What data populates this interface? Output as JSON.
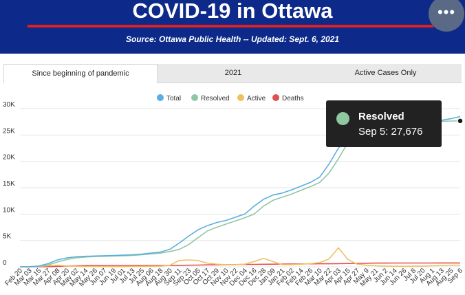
{
  "header": {
    "title": "COVID-19 in Ottawa",
    "subtitle": "Source:  Ottawa Public Health -- Updated:  Sept. 6, 2021",
    "menu_label": "•••"
  },
  "tabs": [
    {
      "label": "Since beginning of pandemic",
      "active": true
    },
    {
      "label": "2021",
      "active": false
    },
    {
      "label": "Active Cases Only",
      "active": false
    }
  ],
  "tooltip": {
    "series": "Resolved",
    "text": "Sep 5: 27,676"
  },
  "chart_data": {
    "type": "line",
    "legend": "top-center",
    "grid": true,
    "ylim": [
      0,
      30000
    ],
    "y_ticks": [
      "0",
      "5K",
      "10K",
      "15K",
      "20K",
      "25K",
      "30K"
    ],
    "x_labels": [
      "Feb 20",
      "Mar 03",
      "Mar 15",
      "Mar 27",
      "Apr 08",
      "Apr 20",
      "May 02",
      "May 14",
      "May 26",
      "Jun 07",
      "Jun 19",
      "Jul 01",
      "Jul 13",
      "Jul 25",
      "Aug 06",
      "Aug 18",
      "Aug 30",
      "Sep 11",
      "Sep 23",
      "Oct 05",
      "Oct 17",
      "Oct 29",
      "Nov 10",
      "Nov 22",
      "Dec 04",
      "Dec 16",
      "Dec 28",
      "Jan 09",
      "Jan 21",
      "Feb 02",
      "Feb 14",
      "Feb 26",
      "Mar 10",
      "Mar 22",
      "Apr 03",
      "Apr 15",
      "Apr 27",
      "May 9",
      "May 21",
      "Jun 2",
      "Jun 14",
      "Jun 26",
      "Jul 8",
      "Jul 20",
      "Aug 1",
      "Aug 13",
      "Aug 25",
      "Sep 6"
    ],
    "series": [
      {
        "name": "Total",
        "color": "#5aaee0",
        "values": [
          0,
          20,
          150,
          600,
          1300,
          1700,
          1900,
          2000,
          2050,
          2100,
          2150,
          2200,
          2300,
          2400,
          2600,
          2800,
          3300,
          4500,
          5800,
          7000,
          7800,
          8400,
          8800,
          9400,
          10000,
          11500,
          12800,
          13600,
          14000,
          14600,
          15300,
          16000,
          17000,
          19500,
          22500,
          24500,
          26000,
          26800,
          27200,
          27400,
          27500,
          27550,
          27600,
          27650,
          27700,
          27800,
          28100,
          28500
        ]
      },
      {
        "name": "Resolved",
        "color": "#8fc8a0",
        "values": [
          0,
          10,
          80,
          350,
          900,
          1400,
          1700,
          1850,
          1950,
          2000,
          2050,
          2100,
          2150,
          2300,
          2450,
          2600,
          2900,
          3300,
          4200,
          5500,
          6800,
          7500,
          8100,
          8700,
          9300,
          10000,
          11500,
          12600,
          13200,
          13800,
          14500,
          15200,
          16000,
          17800,
          20500,
          23500,
          25500,
          26400,
          27000,
          27200,
          27350,
          27400,
          27450,
          27500,
          27550,
          27600,
          27650,
          27676
        ]
      },
      {
        "name": "Active",
        "color": "#f0c060",
        "values": [
          0,
          20,
          60,
          200,
          300,
          150,
          100,
          60,
          50,
          40,
          30,
          30,
          60,
          80,
          100,
          150,
          300,
          1200,
          1300,
          1200,
          700,
          500,
          400,
          400,
          500,
          1000,
          1600,
          1000,
          400,
          400,
          500,
          600,
          800,
          1500,
          3600,
          1400,
          500,
          300,
          200,
          150,
          100,
          100,
          120,
          150,
          200,
          250,
          300,
          300
        ]
      },
      {
        "name": "Deaths",
        "color": "#e05050",
        "values": [
          0,
          0,
          5,
          20,
          80,
          150,
          200,
          230,
          250,
          260,
          265,
          265,
          265,
          265,
          265,
          265,
          270,
          280,
          300,
          330,
          360,
          380,
          400,
          420,
          440,
          460,
          480,
          500,
          520,
          540,
          550,
          560,
          570,
          580,
          600,
          620,
          650,
          680,
          700,
          710,
          715,
          718,
          720,
          720,
          722,
          725,
          728,
          730
        ]
      }
    ]
  }
}
